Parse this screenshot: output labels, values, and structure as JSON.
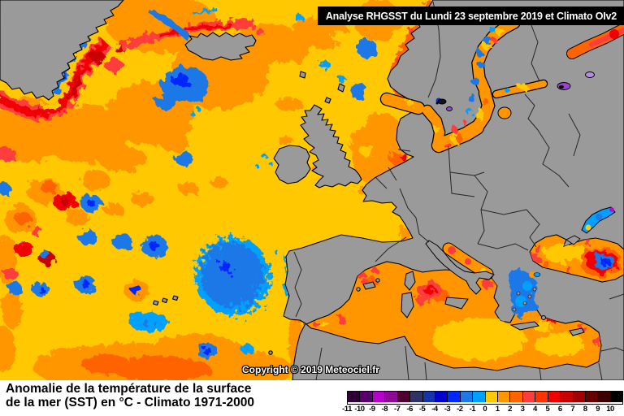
{
  "banner": {
    "text": "Analyse RHGSST  du Lundi 23 septembre 2019 et Climato OIv2"
  },
  "map": {
    "copyright": "Copyright © 2019 Meteociel.fr",
    "land_color": "#9A9A9A",
    "coastline_color": "#000000",
    "anomaly_colors": {
      "neutral_0_1": "#FFC800",
      "warm_1_2": "#FF9600",
      "warm_2_3": "#FF6400",
      "warm_3_4": "#FF3C3C",
      "hot_5_6": "#F00000",
      "cool_m2_m1": "#1E78E6",
      "cool_m1_0": "#00A0FF",
      "cold_m3_m2": "#0028FF"
    }
  },
  "caption": {
    "line1": "Anomalie de la température de la surface",
    "line2": "de la mer (SST) en °C - Climato 1971-2000"
  },
  "colorbar": {
    "unit": "°C",
    "cells": [
      {
        "label": "-11",
        "color": "#2E0034"
      },
      {
        "label": "-10",
        "color": "#5A006E"
      },
      {
        "label": "-9",
        "color": "#B400C8"
      },
      {
        "label": "-8",
        "color": "#8C0A96"
      },
      {
        "label": "-7",
        "color": "#500030"
      },
      {
        "label": "-6",
        "color": "#2E3264"
      },
      {
        "label": "-5",
        "color": "#1432AA"
      },
      {
        "label": "-4",
        "color": "#0000D2"
      },
      {
        "label": "-3",
        "color": "#0028FF"
      },
      {
        "label": "-2",
        "color": "#1E78E6"
      },
      {
        "label": "-1",
        "color": "#00A0FF"
      },
      {
        "label": "0",
        "color": "#FFC800"
      },
      {
        "label": "1",
        "color": "#FF9600"
      },
      {
        "label": "2",
        "color": "#FF6400"
      },
      {
        "label": "3",
        "color": "#FF3C3C"
      },
      {
        "label": "4",
        "color": "#FF3200"
      },
      {
        "label": "5",
        "color": "#F00000"
      },
      {
        "label": "6",
        "color": "#C80000"
      },
      {
        "label": "7",
        "color": "#A00000"
      },
      {
        "label": "8",
        "color": "#640000"
      },
      {
        "label": "9",
        "color": "#3C0000"
      },
      {
        "label": "10",
        "color": "#000000"
      }
    ]
  }
}
